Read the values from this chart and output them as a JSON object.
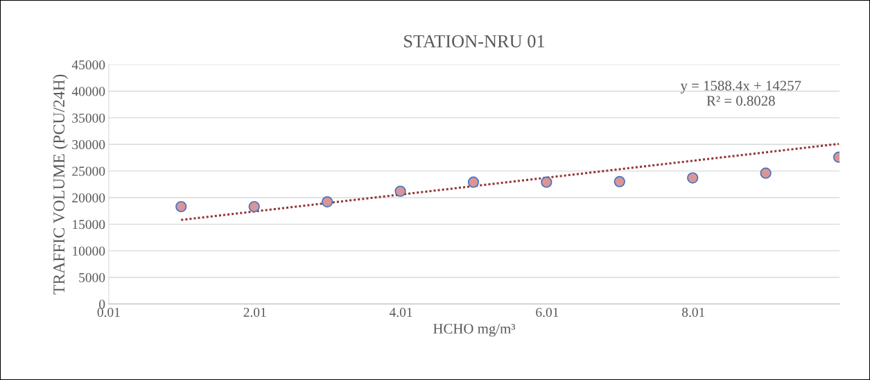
{
  "chart_data": {
    "type": "scatter",
    "title": "STATION-NRU 01",
    "xlabel": "HCHO mg/m³",
    "ylabel": "TRAFFIC VOLUME (PCU/24H)",
    "x": [
      1,
      2,
      3,
      4,
      5,
      6,
      7,
      8,
      9,
      10
    ],
    "series": [
      {
        "color": "#d99694",
        "values": [
          18300,
          18300,
          19200,
          21200,
          22900,
          22900,
          23000,
          23700,
          24600,
          27600
        ]
      },
      {
        "type": "line",
        "color": "#943634",
        "line_style": "dotted",
        "marker": "none",
        "x": [
          1,
          10
        ],
        "values": [
          15800,
          30100
        ]
      }
    ],
    "marker": "circle",
    "annotations": [
      "y = 1588.4x + 14257\nR² = 0.8028"
    ],
    "xlim": [
      0.01,
      10.01
    ],
    "xticks": [
      {
        "value": 0.01,
        "label": "0.01"
      },
      {
        "value": 2.01,
        "label": "2.01"
      },
      {
        "value": 4.01,
        "label": "4.01"
      },
      {
        "value": 6.01,
        "label": "6.01"
      },
      {
        "value": 8.01,
        "label": "8.01"
      }
    ],
    "ylim": [
      0,
      45000
    ],
    "yticks": [
      0,
      5000,
      10000,
      15000,
      20000,
      25000,
      30000,
      35000,
      40000,
      45000
    ],
    "grid": "y",
    "legend": false
  }
}
